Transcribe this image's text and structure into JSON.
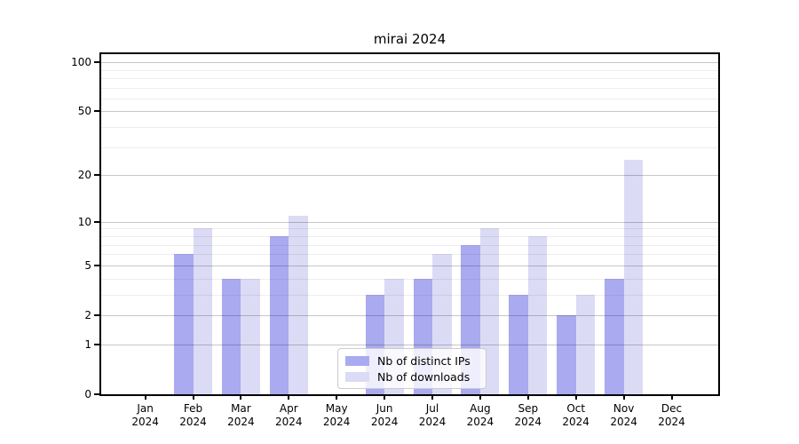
{
  "title": "mirai 2024",
  "colors": {
    "bar_ips": "#aaaaf0",
    "bar_downloads": "#dbdbf5",
    "grid_major": "rgba(0,0,0,0.22)",
    "grid_minor": "rgba(0,0,0,0.07)",
    "axis": "#000000",
    "background": "#ffffff"
  },
  "legend": {
    "items": [
      {
        "label": "Nb of distinct IPs",
        "color_key": "bar_ips"
      },
      {
        "label": "Nb of downloads",
        "color_key": "bar_downloads"
      }
    ]
  },
  "chart_data": {
    "type": "bar",
    "title": "mirai 2024",
    "categories": [
      "Jan 2024",
      "Feb 2024",
      "Mar 2024",
      "Apr 2024",
      "May 2024",
      "Jun 2024",
      "Jul 2024",
      "Aug 2024",
      "Sep 2024",
      "Oct 2024",
      "Nov 2024",
      "Dec 2024"
    ],
    "series": [
      {
        "name": "Nb of distinct IPs",
        "values": [
          0,
          6,
          4,
          8,
          0,
          3,
          4,
          7,
          3,
          2,
          4,
          0
        ]
      },
      {
        "name": "Nb of downloads",
        "values": [
          0,
          9,
          4,
          11,
          0,
          4,
          6,
          9,
          8,
          3,
          25,
          0
        ]
      }
    ],
    "xlabel": "",
    "ylabel": "",
    "yscale": "log10(value+1)",
    "ylim": [
      0,
      112
    ],
    "yticks_major": [
      0,
      1,
      2,
      5,
      10,
      20,
      50,
      100
    ],
    "yticks_minor": [
      3,
      4,
      6,
      7,
      8,
      9,
      30,
      40,
      60,
      70,
      80,
      90
    ],
    "grid": "horizontal",
    "legend_position": "lower-center"
  }
}
